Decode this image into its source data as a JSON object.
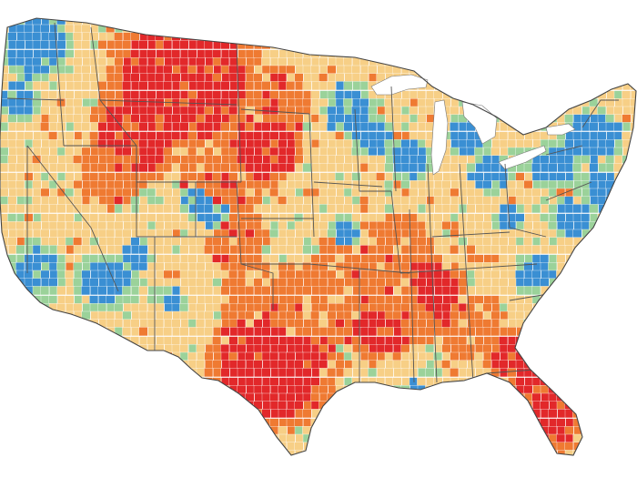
{
  "map": {
    "type": "choropleth",
    "region": "contiguous-united-states",
    "unit": "county",
    "legend": null,
    "palette": {
      "class_1": "#3a8fd3",
      "class_2": "#9bd29a",
      "class_3": "#f7cf86",
      "class_4": "#ef7a32",
      "class_5": "#e2282a"
    },
    "class_order": [
      "class_1",
      "class_2",
      "class_3",
      "class_4",
      "class_5"
    ],
    "border_colors": {
      "county": "#ffffff",
      "state": "#555555"
    }
  }
}
